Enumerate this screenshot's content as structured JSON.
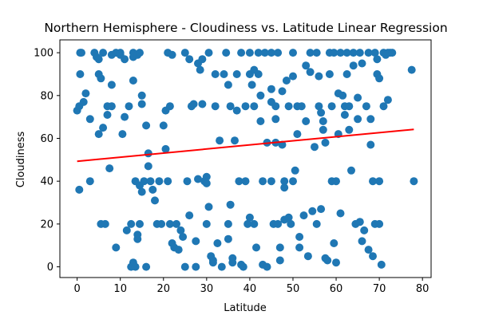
{
  "chart_data": {
    "type": "scatter",
    "title": "Northern Hemisphere - Cloudiness vs. Latitude Linear Regression",
    "xlabel": "Latitude",
    "ylabel": "Cloudiness",
    "xlim": [
      -4,
      82
    ],
    "ylim": [
      -5,
      106
    ],
    "xticks": [
      "0",
      "10",
      "20",
      "30",
      "40",
      "50",
      "60",
      "70",
      "80"
    ],
    "yticks": [
      "0",
      "20",
      "40",
      "60",
      "80",
      "100"
    ],
    "grid": false,
    "legend": "none",
    "colors": {
      "points": "#1f77b4",
      "regression": "#ff0000"
    },
    "regression": {
      "x": [
        0,
        78
      ],
      "y": [
        49.3,
        64.2
      ]
    },
    "series": [
      {
        "values": [
          [
            0,
            73
          ],
          [
            0.5,
            36
          ],
          [
            0.5,
            75
          ],
          [
            0.7,
            90
          ],
          [
            0.7,
            100
          ],
          [
            1,
            100
          ],
          [
            1.5,
            77
          ],
          [
            2,
            81
          ],
          [
            3,
            69
          ],
          [
            3,
            40
          ],
          [
            4,
            100
          ],
          [
            4.5,
            98
          ],
          [
            5,
            97
          ],
          [
            5,
            90
          ],
          [
            5,
            62
          ],
          [
            5.5,
            88
          ],
          [
            6,
            100
          ],
          [
            6,
            65
          ],
          [
            5.5,
            20
          ],
          [
            6.5,
            20
          ],
          [
            7,
            75
          ],
          [
            7,
            71
          ],
          [
            7.5,
            46
          ],
          [
            8,
            99
          ],
          [
            8,
            85
          ],
          [
            8,
            75
          ],
          [
            9,
            100
          ],
          [
            9,
            9
          ],
          [
            10,
            100
          ],
          [
            10,
            99
          ],
          [
            10.5,
            62
          ],
          [
            11,
            97
          ],
          [
            11,
            70
          ],
          [
            11.5,
            17
          ],
          [
            12,
            75
          ],
          [
            12.5,
            20
          ],
          [
            13,
            100
          ],
          [
            13,
            98
          ],
          [
            13,
            87
          ],
          [
            12.5,
            0
          ],
          [
            13,
            2
          ],
          [
            13.5,
            0
          ],
          [
            13.5,
            40
          ],
          [
            14,
            99
          ],
          [
            14,
            15
          ],
          [
            14,
            13
          ],
          [
            14.5,
            100
          ],
          [
            14.5,
            38
          ],
          [
            15,
            80
          ],
          [
            15,
            76
          ],
          [
            15,
            35
          ],
          [
            14.5,
            20
          ],
          [
            15.5,
            40
          ],
          [
            16,
            66
          ],
          [
            16.5,
            53
          ],
          [
            16.5,
            47
          ],
          [
            17,
            40
          ],
          [
            16,
            0
          ],
          [
            17.5,
            36
          ],
          [
            18,
            31
          ],
          [
            19,
            40
          ],
          [
            18.5,
            20
          ],
          [
            19.5,
            20
          ],
          [
            20,
            66
          ],
          [
            20.5,
            73
          ],
          [
            20.5,
            55
          ],
          [
            21,
            100
          ],
          [
            21,
            40
          ],
          [
            21.5,
            75
          ],
          [
            22,
            99
          ],
          [
            21.5,
            20
          ],
          [
            22,
            11
          ],
          [
            22.5,
            9
          ],
          [
            23,
            20
          ],
          [
            23.5,
            8
          ],
          [
            24,
            17
          ],
          [
            24.5,
            14
          ],
          [
            25,
            100
          ],
          [
            25,
            0
          ],
          [
            25.5,
            40
          ],
          [
            26,
            97
          ],
          [
            26,
            24
          ],
          [
            26.5,
            75
          ],
          [
            27,
            76
          ],
          [
            27.5,
            12
          ],
          [
            27.5,
            0
          ],
          [
            28,
            95
          ],
          [
            28,
            41
          ],
          [
            28.5,
            92
          ],
          [
            29,
            97
          ],
          [
            29,
            76
          ],
          [
            29.5,
            40
          ],
          [
            30,
            39
          ],
          [
            30,
            42
          ],
          [
            30,
            20
          ],
          [
            30.5,
            100
          ],
          [
            30.5,
            28
          ],
          [
            31,
            5
          ],
          [
            31.5,
            3
          ],
          [
            31.5,
            2
          ],
          [
            32,
            75
          ],
          [
            32,
            90
          ],
          [
            32.5,
            11
          ],
          [
            33,
            59
          ],
          [
            33.5,
            0
          ],
          [
            34,
            90
          ],
          [
            34.5,
            100
          ],
          [
            35,
            85
          ],
          [
            35,
            20
          ],
          [
            35,
            13
          ],
          [
            35.5,
            75
          ],
          [
            35.5,
            29
          ],
          [
            36,
            4
          ],
          [
            36,
            2
          ],
          [
            36.5,
            59
          ],
          [
            37,
            90
          ],
          [
            37,
            73
          ],
          [
            37.5,
            40
          ],
          [
            38,
            100
          ],
          [
            38,
            1
          ],
          [
            38.5,
            0
          ],
          [
            39,
            75
          ],
          [
            39,
            40
          ],
          [
            39.5,
            20
          ],
          [
            40,
            100
          ],
          [
            40,
            90
          ],
          [
            40,
            23
          ],
          [
            40.5,
            85
          ],
          [
            41,
            92
          ],
          [
            41,
            75
          ],
          [
            41,
            20
          ],
          [
            41.5,
            9
          ],
          [
            42,
            100
          ],
          [
            42,
            90
          ],
          [
            42.5,
            80
          ],
          [
            42.5,
            68
          ],
          [
            43,
            40
          ],
          [
            43,
            1
          ],
          [
            43.5,
            100
          ],
          [
            44,
            58
          ],
          [
            44,
            0
          ],
          [
            45,
            100
          ],
          [
            45,
            83
          ],
          [
            45,
            77
          ],
          [
            45,
            40
          ],
          [
            45.5,
            20
          ],
          [
            46,
            75
          ],
          [
            46,
            69
          ],
          [
            46,
            58
          ],
          [
            46.5,
            100
          ],
          [
            46.5,
            20
          ],
          [
            47,
            3
          ],
          [
            47,
            9
          ],
          [
            47.5,
            82
          ],
          [
            47.5,
            57
          ],
          [
            48,
            40
          ],
          [
            48,
            37
          ],
          [
            48,
            22
          ],
          [
            48.5,
            87
          ],
          [
            49,
            75
          ],
          [
            49,
            23
          ],
          [
            49.5,
            20
          ],
          [
            50,
            100
          ],
          [
            50,
            89
          ],
          [
            50,
            40
          ],
          [
            50.5,
            45
          ],
          [
            51,
            75
          ],
          [
            51,
            62
          ],
          [
            51.5,
            9
          ],
          [
            51.5,
            14
          ],
          [
            52,
            75
          ],
          [
            52.5,
            24
          ],
          [
            53,
            94
          ],
          [
            53,
            68
          ],
          [
            53.5,
            5
          ],
          [
            54,
            100
          ],
          [
            54,
            91
          ],
          [
            54.5,
            26
          ],
          [
            55,
            56
          ],
          [
            55.5,
            20
          ],
          [
            55.5,
            100
          ],
          [
            56,
            89
          ],
          [
            56,
            75
          ],
          [
            56.5,
            72
          ],
          [
            56.5,
            27
          ],
          [
            57,
            68
          ],
          [
            57,
            64
          ],
          [
            57.5,
            58
          ],
          [
            57.5,
            4
          ],
          [
            58,
            3
          ],
          [
            58.5,
            90
          ],
          [
            58.5,
            100
          ],
          [
            59,
            75
          ],
          [
            59,
            40
          ],
          [
            59.5,
            100
          ],
          [
            59.5,
            11
          ],
          [
            60,
            40
          ],
          [
            60,
            2
          ],
          [
            60.5,
            81
          ],
          [
            60.5,
            62
          ],
          [
            61,
            100
          ],
          [
            61,
            25
          ],
          [
            61.5,
            80
          ],
          [
            62,
            75
          ],
          [
            62,
            71
          ],
          [
            62.5,
            100
          ],
          [
            62.5,
            90
          ],
          [
            63,
            64
          ],
          [
            63,
            75
          ],
          [
            63.5,
            45
          ],
          [
            64,
            100
          ],
          [
            64,
            94
          ],
          [
            64.5,
            20
          ],
          [
            65,
            79
          ],
          [
            65,
            69
          ],
          [
            65.5,
            100
          ],
          [
            65.5,
            21
          ],
          [
            66,
            95
          ],
          [
            66,
            12
          ],
          [
            66.5,
            17
          ],
          [
            67,
            75
          ],
          [
            67.5,
            100
          ],
          [
            67.5,
            8
          ],
          [
            68,
            69
          ],
          [
            68,
            57
          ],
          [
            68.5,
            40
          ],
          [
            68.5,
            5
          ],
          [
            69,
            100
          ],
          [
            69,
            20
          ],
          [
            69.5,
            97
          ],
          [
            69.5,
            90
          ],
          [
            70,
            88
          ],
          [
            70,
            20
          ],
          [
            70,
            40
          ],
          [
            70.5,
            1
          ],
          [
            71,
            100
          ],
          [
            71,
            75
          ],
          [
            71.5,
            99
          ],
          [
            72,
            100
          ],
          [
            72,
            78
          ],
          [
            72.5,
            100
          ],
          [
            73,
            100
          ],
          [
            77.5,
            92
          ],
          [
            78,
            40
          ]
        ]
      }
    ]
  }
}
